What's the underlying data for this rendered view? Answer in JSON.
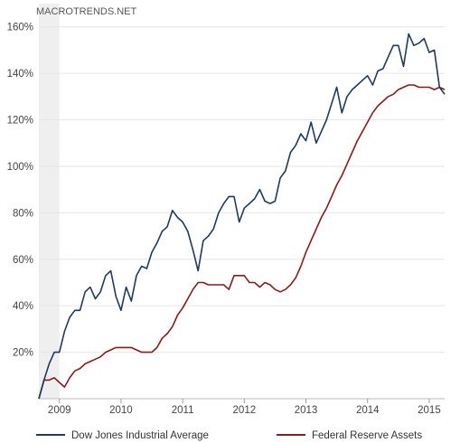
{
  "watermark": "MACROTRENDS.NET",
  "chart_data": {
    "type": "line",
    "title": "",
    "xlabel": "",
    "ylabel": "",
    "x_ticks": [
      "2009",
      "2010",
      "2011",
      "2012",
      "2013",
      "2014",
      "2015"
    ],
    "y_ticks": [
      "20%",
      "40%",
      "60%",
      "80%",
      "100%",
      "120%",
      "140%",
      "160%"
    ],
    "y_tick_values": [
      20,
      40,
      60,
      80,
      100,
      120,
      140,
      160
    ],
    "xlim": [
      "2008-09",
      "2015-04"
    ],
    "ylim": [
      0,
      170
    ],
    "grid": "horizontal",
    "legend_position": "bottom",
    "shaded_region": [
      "2008-09",
      "2009-01"
    ],
    "colors": {
      "Dow Jones Industrial Average": "#1f3a5f",
      "Federal Reserve Assets": "#8b1a1a",
      "grid": "#e6e6e6",
      "shade": "#efefef"
    },
    "series": [
      {
        "name": "Dow Jones Industrial Average",
        "points": [
          [
            "2008-09",
            0
          ],
          [
            "2008-10",
            8
          ],
          [
            "2008-11",
            15
          ],
          [
            "2008-12",
            20
          ],
          [
            "2009-01",
            20
          ],
          [
            "2009-02",
            29
          ],
          [
            "2009-03",
            35
          ],
          [
            "2009-04",
            38
          ],
          [
            "2009-05",
            38
          ],
          [
            "2009-06",
            46
          ],
          [
            "2009-07",
            48
          ],
          [
            "2009-08",
            43
          ],
          [
            "2009-09",
            46
          ],
          [
            "2009-10",
            53
          ],
          [
            "2009-11",
            55
          ],
          [
            "2009-12",
            44
          ],
          [
            "2010-01",
            38
          ],
          [
            "2010-02",
            48
          ],
          [
            "2010-03",
            42
          ],
          [
            "2010-04",
            53
          ],
          [
            "2010-05",
            57
          ],
          [
            "2010-06",
            56
          ],
          [
            "2010-07",
            63
          ],
          [
            "2010-08",
            67
          ],
          [
            "2010-09",
            72
          ],
          [
            "2010-10",
            74
          ],
          [
            "2010-11",
            81
          ],
          [
            "2010-12",
            78
          ],
          [
            "2011-01",
            76
          ],
          [
            "2011-02",
            72
          ],
          [
            "2011-03",
            64
          ],
          [
            "2011-04",
            55
          ],
          [
            "2011-05",
            68
          ],
          [
            "2011-06",
            70
          ],
          [
            "2011-07",
            73
          ],
          [
            "2011-08",
            80
          ],
          [
            "2011-09",
            84
          ],
          [
            "2011-10",
            87
          ],
          [
            "2011-11",
            87
          ],
          [
            "2011-12",
            76
          ],
          [
            "2012-01",
            82
          ],
          [
            "2012-02",
            84
          ],
          [
            "2012-03",
            86
          ],
          [
            "2012-04",
            90
          ],
          [
            "2012-05",
            85
          ],
          [
            "2012-06",
            84
          ],
          [
            "2012-07",
            85
          ],
          [
            "2012-08",
            95
          ],
          [
            "2012-09",
            98
          ],
          [
            "2012-10",
            106
          ],
          [
            "2012-11",
            109
          ],
          [
            "2012-12",
            114
          ],
          [
            "2013-01",
            111
          ],
          [
            "2013-02",
            119
          ],
          [
            "2013-03",
            110
          ],
          [
            "2013-04",
            115
          ],
          [
            "2013-05",
            120
          ],
          [
            "2013-06",
            127
          ],
          [
            "2013-07",
            134
          ],
          [
            "2013-08",
            123
          ],
          [
            "2013-09",
            130
          ],
          [
            "2013-10",
            133
          ],
          [
            "2013-11",
            135
          ],
          [
            "2013-12",
            137
          ],
          [
            "2014-01",
            139
          ],
          [
            "2014-02",
            135
          ],
          [
            "2014-03",
            141
          ],
          [
            "2014-04",
            142
          ],
          [
            "2014-05",
            147
          ],
          [
            "2014-06",
            152
          ],
          [
            "2014-07",
            152
          ],
          [
            "2014-08",
            143
          ],
          [
            "2014-09",
            157
          ],
          [
            "2014-10",
            152
          ],
          [
            "2014-11",
            153
          ],
          [
            "2014-12",
            155
          ],
          [
            "2015-01",
            149
          ],
          [
            "2015-02",
            150
          ],
          [
            "2015-03",
            134
          ],
          [
            "2015-04",
            131
          ]
        ]
      },
      {
        "name": "Federal Reserve Assets",
        "points": [
          [
            "2008-09",
            0
          ],
          [
            "2008-10",
            8
          ],
          [
            "2008-11",
            8
          ],
          [
            "2008-12",
            9
          ],
          [
            "2009-01",
            7
          ],
          [
            "2009-02",
            5
          ],
          [
            "2009-03",
            9
          ],
          [
            "2009-04",
            12
          ],
          [
            "2009-05",
            13
          ],
          [
            "2009-06",
            15
          ],
          [
            "2009-07",
            16
          ],
          [
            "2009-08",
            17
          ],
          [
            "2009-09",
            18
          ],
          [
            "2009-10",
            20
          ],
          [
            "2009-11",
            21
          ],
          [
            "2009-12",
            22
          ],
          [
            "2010-01",
            22
          ],
          [
            "2010-02",
            22
          ],
          [
            "2010-03",
            22
          ],
          [
            "2010-04",
            21
          ],
          [
            "2010-05",
            20
          ],
          [
            "2010-06",
            20
          ],
          [
            "2010-07",
            20
          ],
          [
            "2010-08",
            22
          ],
          [
            "2010-09",
            26
          ],
          [
            "2010-10",
            28
          ],
          [
            "2010-11",
            31
          ],
          [
            "2010-12",
            36
          ],
          [
            "2011-01",
            39
          ],
          [
            "2011-02",
            43
          ],
          [
            "2011-03",
            47
          ],
          [
            "2011-04",
            50
          ],
          [
            "2011-05",
            50
          ],
          [
            "2011-06",
            49
          ],
          [
            "2011-07",
            49
          ],
          [
            "2011-08",
            49
          ],
          [
            "2011-09",
            49
          ],
          [
            "2011-10",
            47
          ],
          [
            "2011-11",
            53
          ],
          [
            "2011-12",
            53
          ],
          [
            "2012-01",
            53
          ],
          [
            "2012-02",
            50
          ],
          [
            "2012-03",
            50
          ],
          [
            "2012-04",
            48
          ],
          [
            "2012-05",
            50
          ],
          [
            "2012-06",
            49
          ],
          [
            "2012-07",
            47
          ],
          [
            "2012-08",
            46
          ],
          [
            "2012-09",
            47
          ],
          [
            "2012-10",
            49
          ],
          [
            "2012-11",
            52
          ],
          [
            "2012-12",
            57
          ],
          [
            "2013-01",
            63
          ],
          [
            "2013-02",
            68
          ],
          [
            "2013-03",
            73
          ],
          [
            "2013-04",
            78
          ],
          [
            "2013-05",
            82
          ],
          [
            "2013-06",
            87
          ],
          [
            "2013-07",
            92
          ],
          [
            "2013-08",
            96
          ],
          [
            "2013-09",
            101
          ],
          [
            "2013-10",
            106
          ],
          [
            "2013-11",
            111
          ],
          [
            "2013-12",
            115
          ],
          [
            "2014-01",
            119
          ],
          [
            "2014-02",
            123
          ],
          [
            "2014-03",
            126
          ],
          [
            "2014-04",
            128
          ],
          [
            "2014-05",
            130
          ],
          [
            "2014-06",
            131
          ],
          [
            "2014-07",
            133
          ],
          [
            "2014-08",
            134
          ],
          [
            "2014-09",
            135
          ],
          [
            "2014-10",
            135
          ],
          [
            "2014-11",
            134
          ],
          [
            "2014-12",
            134
          ],
          [
            "2015-01",
            134
          ],
          [
            "2015-02",
            133
          ],
          [
            "2015-03",
            134
          ],
          [
            "2015-04",
            133
          ]
        ]
      }
    ]
  }
}
